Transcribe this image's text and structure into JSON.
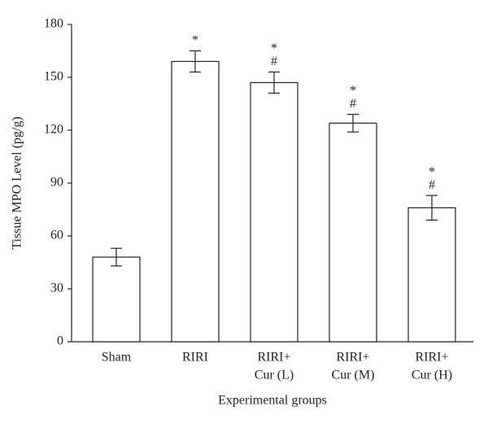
{
  "chart_data": {
    "type": "bar",
    "y_label": "Tissue MPO Level (pg/g)",
    "x_label": "Experimental groups",
    "categories": [
      [
        "Sham"
      ],
      [
        "RIRI"
      ],
      [
        "RIRI+",
        "Cur (L)"
      ],
      [
        "RIRI+",
        "Cur (M)"
      ],
      [
        "RIRI+",
        "Cur (H)"
      ]
    ],
    "values": [
      48,
      159,
      147,
      124,
      76
    ],
    "errors": [
      5,
      6,
      6,
      5,
      7
    ],
    "annotations": [
      [],
      [
        "*"
      ],
      [
        "*",
        "#"
      ],
      [
        "*",
        "#"
      ],
      [
        "*",
        "#"
      ]
    ],
    "color": "#ffffff",
    "ylim": [
      0,
      180
    ],
    "yticks": [
      0,
      30,
      60,
      90,
      120,
      150,
      180
    ],
    "grid": false
  }
}
